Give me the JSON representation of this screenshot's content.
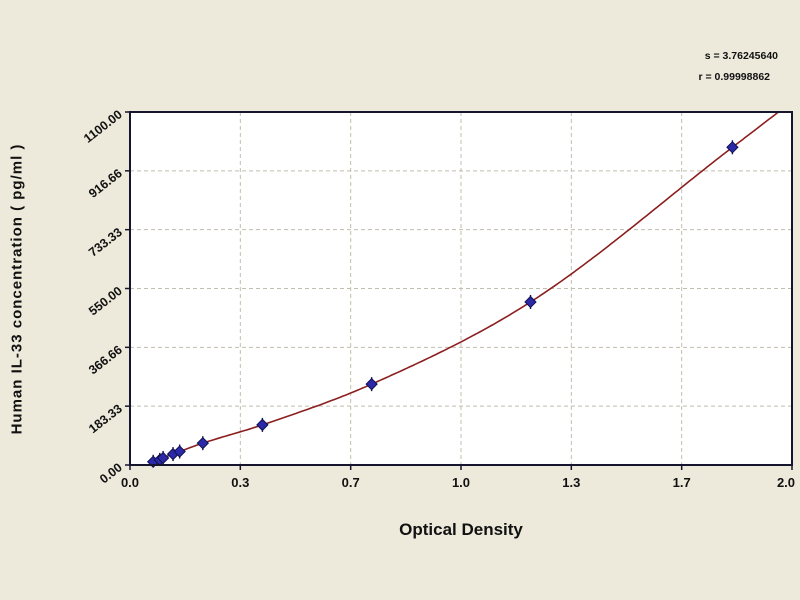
{
  "chart_data": {
    "type": "scatter",
    "xlabel": "Optical Density",
    "ylabel": "Human IL-33 concentration ( pg/ml )",
    "xlim": [
      0,
      2.0
    ],
    "ylim": [
      0,
      1100
    ],
    "grid": true,
    "legend_position": "none",
    "x_ticks": {
      "values": [
        0,
        0.3333,
        0.6667,
        1.0,
        1.3333,
        1.6667,
        2.0
      ],
      "labels": [
        "0.0",
        "0.3",
        "0.7",
        "1.0",
        "1.3",
        "1.7",
        "2.0"
      ]
    },
    "y_ticks": {
      "values": [
        0,
        183.33,
        366.66,
        550.0,
        733.33,
        916.66,
        1100.0
      ],
      "labels": [
        "0.00",
        "183.33",
        "366.66",
        "550.00",
        "733.33",
        "916.66",
        "1100.00"
      ]
    },
    "points": [
      {
        "x": 0.07,
        "y": 10
      },
      {
        "x": 0.09,
        "y": 16
      },
      {
        "x": 0.1,
        "y": 22
      },
      {
        "x": 0.13,
        "y": 34
      },
      {
        "x": 0.15,
        "y": 42
      },
      {
        "x": 0.22,
        "y": 68
      },
      {
        "x": 0.4,
        "y": 125
      },
      {
        "x": 0.73,
        "y": 252
      },
      {
        "x": 1.21,
        "y": 508
      },
      {
        "x": 1.82,
        "y": 990
      }
    ],
    "curve": {
      "fit": "standard-curve",
      "extend_to_x": 2.0
    },
    "annotations": [
      {
        "id": "s",
        "label": "s = 3.76245640"
      },
      {
        "id": "r",
        "label": "r = 0.99998862"
      }
    ],
    "colors": {
      "background": "#edeadb",
      "plot_bg": "#ffffff",
      "grid": "#c2bead",
      "border": "#15152e",
      "curve": "#8b1f1f",
      "point_fill": "#2b29a7",
      "point_edge": "#101050",
      "text": "#111111"
    }
  }
}
